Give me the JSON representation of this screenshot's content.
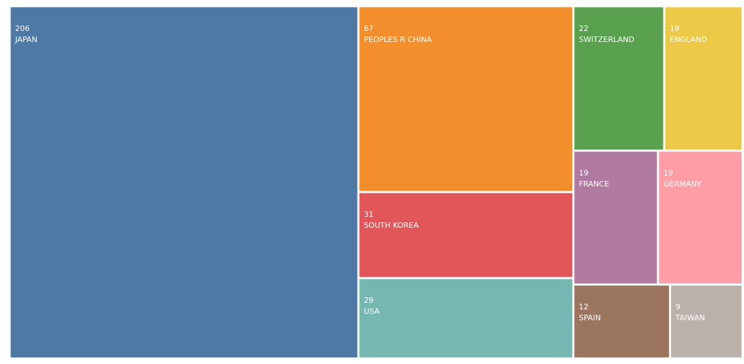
{
  "chart_data": {
    "type": "treemap",
    "categories": [
      "JAPAN",
      "PEOPLES R CHINA",
      "SOUTH KOREA",
      "USA",
      "SWITZERLAND",
      "ENGLAND",
      "FRANCE",
      "GERMANY",
      "SPAIN",
      "TAIWAN"
    ],
    "values": [
      206,
      67,
      31,
      29,
      22,
      19,
      19,
      19,
      12,
      9
    ],
    "colors": [
      "#4e79a7",
      "#f28e2b",
      "#e15759",
      "#76b7b2",
      "#59a14f",
      "#edc948",
      "#b07aa1",
      "#ff9da7",
      "#9c755f",
      "#bab0ac"
    ]
  }
}
